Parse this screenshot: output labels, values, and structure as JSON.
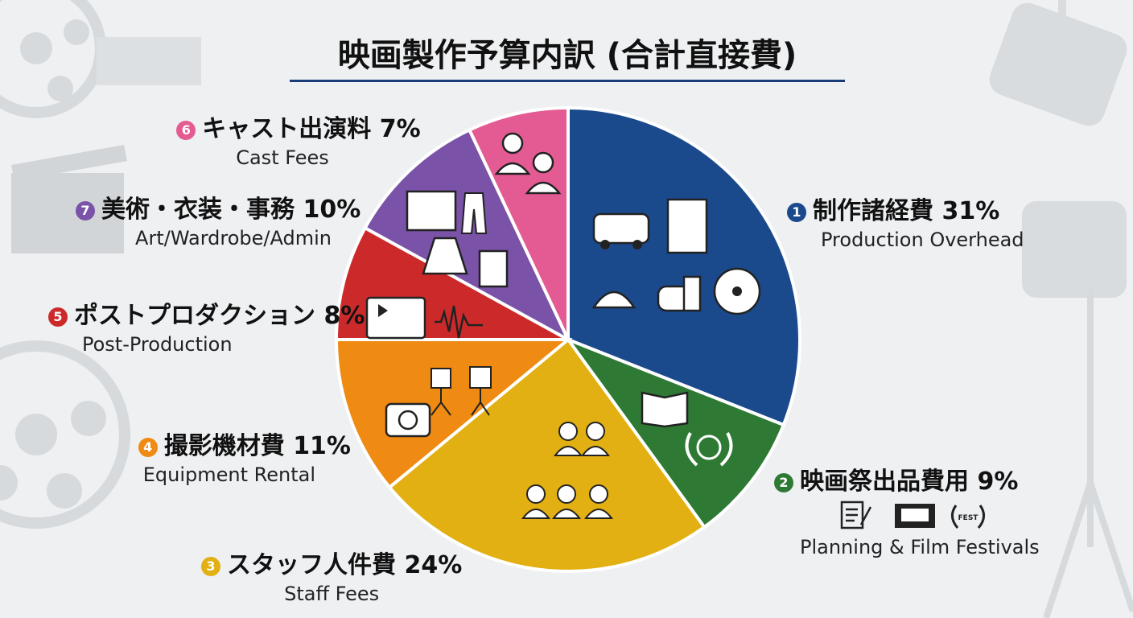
{
  "title": "映画製作予算内訳 (合計直接費)",
  "colors": {
    "background": "#eef0f2",
    "title_rule": "#1a3d7a",
    "slice_border": "#ffffff"
  },
  "chart_data": {
    "type": "pie",
    "title": "映画製作予算内訳 (合計直接費)",
    "unit": "%",
    "slices": [
      {
        "index": "1",
        "label_jp": "制作諸経費",
        "value": 31,
        "value_label": "31%",
        "label_en": "Production Overhead",
        "color": "#1a4a8c",
        "icons": [
          "van-icon",
          "hotel-icon",
          "food-cloche-icon",
          "burger-drink-icon",
          "dcp-disc-icon"
        ]
      },
      {
        "index": "2",
        "label_jp": "映画祭出品費用",
        "value": 9,
        "value_label": "9%",
        "label_en": "Planning & Film Festivals",
        "color": "#2e7a34",
        "icons": [
          "book-icon",
          "festival-laurel-icon"
        ],
        "side_icons": [
          "script-pen-icon",
          "theater-screen-icon",
          "fest-laurel-icon"
        ],
        "side_icon_text": "FEST"
      },
      {
        "index": "3",
        "label_jp": "スタッフ人件費",
        "value": 24,
        "value_label": "24%",
        "label_en": "Staff Fees",
        "color": "#e2b012",
        "icons": [
          "crew-people-icon"
        ]
      },
      {
        "index": "4",
        "label_jp": "撮影機材費",
        "value": 11,
        "value_label": "11%",
        "label_en": "Equipment Rental",
        "color": "#ef8a12",
        "icons": [
          "camera-icon",
          "studio-lights-icon"
        ]
      },
      {
        "index": "5",
        "label_jp": "ポストプロダクション",
        "value": 8,
        "value_label": "8%",
        "label_en": "Post-Production",
        "color": "#cc2a2a",
        "icons": [
          "video-editor-icon",
          "waveform-icon"
        ]
      },
      {
        "index": "7",
        "label_jp": "美術・衣装・事務",
        "value": 10,
        "value_label": "10%",
        "label_en": "Art/Wardrobe/Admin",
        "color": "#7a52a8",
        "icons": [
          "painting-icon",
          "suit-icon",
          "coat-icon",
          "document-icon"
        ]
      },
      {
        "index": "6",
        "label_jp": "キャスト出演料",
        "value": 7,
        "value_label": "7%",
        "label_en": "Cast Fees",
        "color": "#e45b94",
        "icons": [
          "actors-icon"
        ]
      }
    ]
  }
}
